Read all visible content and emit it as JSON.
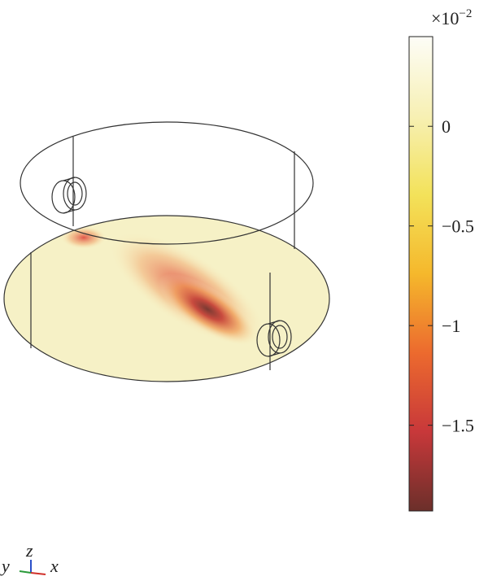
{
  "colorbar": {
    "lim": [
      -1.93,
      0.45
    ],
    "ticks": [
      {
        "value": 0,
        "label": "0"
      },
      {
        "value": -0.5,
        "label": "−0.5"
      },
      {
        "value": -1,
        "label": "−1"
      },
      {
        "value": -1.5,
        "label": "−1.5"
      }
    ],
    "multiplier": {
      "base": "×10",
      "exponent": "−2"
    },
    "colors": [
      "#6b2f2a",
      "#c8383a",
      "#ec6a2e",
      "#f5b82c",
      "#f3e25a",
      "#f7f0b4",
      "#fdfdf7"
    ]
  },
  "axes_triad": {
    "z": "z",
    "y": "y",
    "x": "x"
  }
}
